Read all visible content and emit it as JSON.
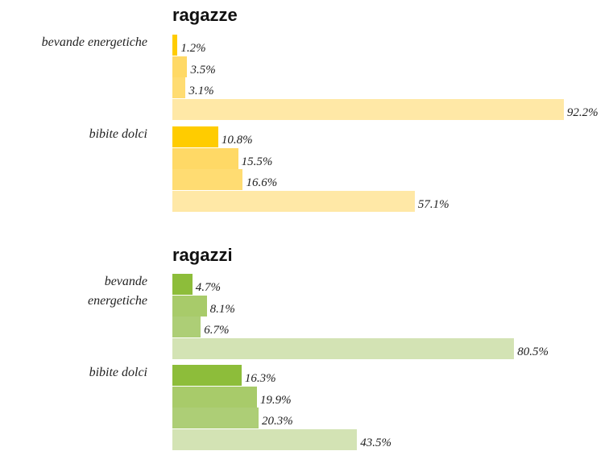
{
  "chart_data": [
    {
      "type": "bar",
      "orientation": "horizontal",
      "title": "ragazze",
      "categories": [
        "bevande energetiche",
        "bibite dolci"
      ],
      "series": [
        {
          "color": "#ffcc00",
          "values": [
            1.2,
            10.8
          ],
          "value_labels": [
            "1.2%",
            "10.8%"
          ]
        },
        {
          "color": "#ffd966",
          "values": [
            3.5,
            15.5
          ],
          "value_labels": [
            "3.5%",
            "15.5%"
          ]
        },
        {
          "color": "#ffdc72",
          "values": [
            3.1,
            16.6
          ],
          "value_labels": [
            "3.1%",
            "16.6%"
          ]
        },
        {
          "color": "#ffe8a6",
          "values": [
            92.2,
            57.1
          ],
          "value_labels": [
            "92.2%",
            "57.1%"
          ]
        }
      ]
    },
    {
      "type": "bar",
      "orientation": "horizontal",
      "title": "ragazzi",
      "categories": [
        "bevande energetiche",
        "bibite dolci"
      ],
      "series": [
        {
          "color": "#8dbd3a",
          "values": [
            4.7,
            16.3
          ],
          "value_labels": [
            "4.7%",
            "16.3%"
          ]
        },
        {
          "color": "#a8cb6a",
          "values": [
            8.1,
            19.9
          ],
          "value_labels": [
            "8.1%",
            "19.9%"
          ]
        },
        {
          "color": "#adce76",
          "values": [
            6.7,
            20.3
          ],
          "value_labels": [
            "6.7%",
            "20.3%"
          ]
        },
        {
          "color": "#d3e3b4",
          "values": [
            80.5,
            43.5
          ],
          "value_labels": [
            "80.5%",
            "43.5%"
          ]
        }
      ]
    }
  ]
}
